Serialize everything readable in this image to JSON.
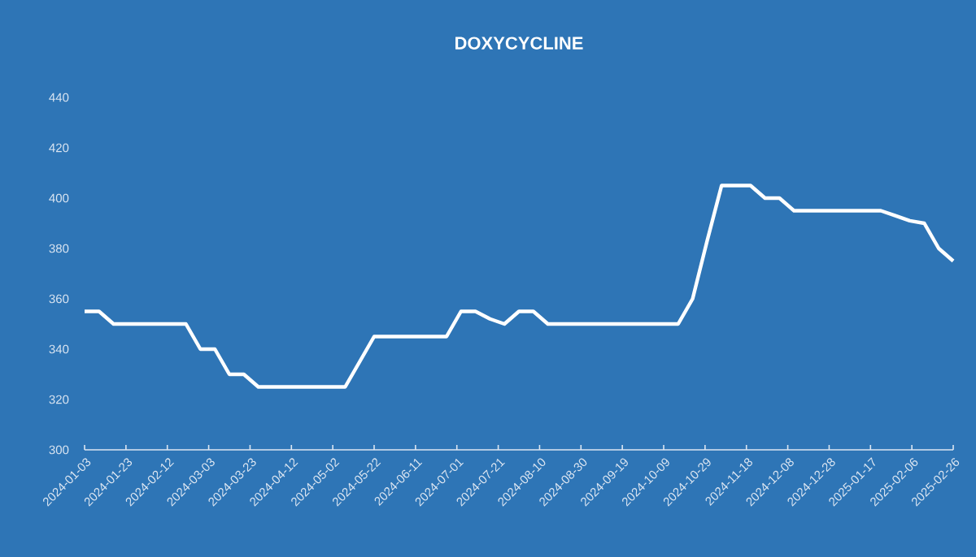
{
  "chart_data": {
    "type": "line",
    "title": "DOXYCYCLINE",
    "x": [
      "2024-01-03",
      "2024-01-10",
      "2024-01-17",
      "2024-01-24",
      "2024-01-31",
      "2024-02-07",
      "2024-02-14",
      "2024-02-21",
      "2024-02-28",
      "2024-03-06",
      "2024-03-13",
      "2024-03-20",
      "2024-03-27",
      "2024-04-03",
      "2024-04-10",
      "2024-04-17",
      "2024-04-24",
      "2024-05-01",
      "2024-05-08",
      "2024-05-15",
      "2024-05-22",
      "2024-05-29",
      "2024-06-05",
      "2024-06-12",
      "2024-06-19",
      "2024-06-26",
      "2024-07-03",
      "2024-07-10",
      "2024-07-17",
      "2024-07-24",
      "2024-07-31",
      "2024-08-07",
      "2024-08-14",
      "2024-08-21",
      "2024-08-28",
      "2024-09-04",
      "2024-09-11",
      "2024-09-18",
      "2024-09-25",
      "2024-10-02",
      "2024-10-09",
      "2024-10-16",
      "2024-10-23",
      "2024-10-30",
      "2024-11-06",
      "2024-11-13",
      "2024-11-20",
      "2024-11-27",
      "2024-12-04",
      "2024-12-11",
      "2024-12-18",
      "2024-12-25",
      "2025-01-01",
      "2025-01-08",
      "2025-01-15",
      "2025-01-22",
      "2025-01-29",
      "2025-02-05",
      "2025-02-12",
      "2025-02-19",
      "2025-02-26"
    ],
    "series": [
      {
        "color": "#ffffff",
        "values": [
          355,
          355,
          350,
          350,
          350,
          350,
          350,
          350,
          340,
          340,
          330,
          330,
          325,
          325,
          325,
          325,
          325,
          325,
          325,
          335,
          345,
          345,
          345,
          345,
          345,
          345,
          355,
          355,
          352,
          350,
          355,
          355,
          350,
          350,
          350,
          350,
          350,
          350,
          350,
          350,
          350,
          350,
          360,
          383,
          405,
          405,
          405,
          400,
          400,
          395,
          395,
          395,
          395,
          395,
          395,
          395,
          393,
          391,
          390,
          380,
          375
        ]
      }
    ],
    "xlim": [
      "2024-01-03",
      "2025-02-26"
    ],
    "xticks": [
      "2024-01-03",
      "2024-01-23",
      "2024-02-12",
      "2024-03-03",
      "2024-03-23",
      "2024-04-12",
      "2024-05-02",
      "2024-05-22",
      "2024-06-11",
      "2024-07-01",
      "2024-07-21",
      "2024-08-10",
      "2024-08-30",
      "2024-09-19",
      "2024-10-09",
      "2024-10-29",
      "2024-11-18",
      "2024-12-08",
      "2024-12-28",
      "2025-01-17",
      "2025-02-06",
      "2025-02-26"
    ],
    "ylim": [
      300,
      440
    ],
    "yticks": [
      300,
      320,
      340,
      360,
      380,
      400,
      420,
      440
    ],
    "grid": false,
    "marker": "none",
    "line_style": "solid"
  }
}
